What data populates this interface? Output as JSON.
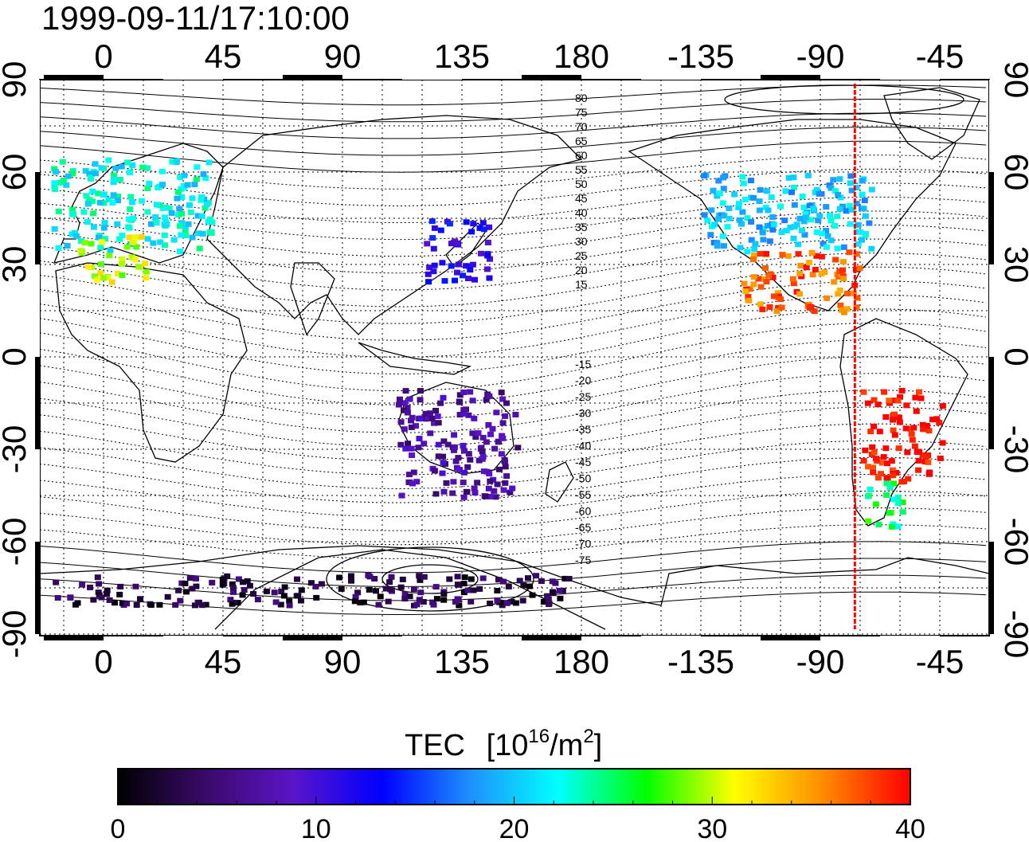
{
  "title": "1999-09-11/17:10:00",
  "map": {
    "lon_ticks_top": [
      "0",
      "45",
      "90",
      "135",
      "180",
      "-135",
      "-90",
      "-45"
    ],
    "lon_ticks_bottom": [
      "0",
      "45",
      "90",
      "135",
      "180",
      "-135",
      "-90",
      "-45"
    ],
    "lat_ticks_left": [
      "90",
      "60",
      "30",
      "0",
      "-30",
      "-60",
      "-90"
    ],
    "lat_ticks_right": [
      "90",
      "60",
      "30",
      "0",
      "-30",
      "-60",
      "-90"
    ],
    "magnetic_latitude_labels": [
      "80",
      "75",
      "70",
      "65",
      "60",
      "55",
      "50",
      "45",
      "40",
      "35",
      "30",
      "25",
      "20",
      "15",
      "-15",
      "-20",
      "-25",
      "-30",
      "-35",
      "-40",
      "-45",
      "-50",
      "-55",
      "-60",
      "-65",
      "-70",
      "-75"
    ],
    "terminator_longitude": -77,
    "terminator_color": "#ff0000"
  },
  "colorbar": {
    "title": "TEC",
    "unit_base": "[10",
    "unit_exp": "16",
    "unit_mid": "/m",
    "unit_exp2": "2",
    "unit_close": "]",
    "ticks": [
      "0",
      "10",
      "20",
      "30",
      "40"
    ],
    "min": 0,
    "max": 40,
    "colors": [
      "#000000",
      "#3a0a6a",
      "#5a14c8",
      "#0000ff",
      "#1e90ff",
      "#00ffff",
      "#00ff00",
      "#ffff00",
      "#ff8c00",
      "#ff0000"
    ]
  },
  "chart_data": {
    "type": "heatmap",
    "variable": "TEC",
    "value_range": [
      0,
      40
    ],
    "regions": [
      {
        "lon_range": [
          -20,
          40
        ],
        "lat_range": [
          35,
          65
        ],
        "tec": 22
      },
      {
        "lon_range": [
          -10,
          15
        ],
        "lat_range": [
          25,
          40
        ],
        "tec": 30
      },
      {
        "lon_range": [
          -135,
          -70
        ],
        "lat_range": [
          35,
          60
        ],
        "tec": 20
      },
      {
        "lon_range": [
          -120,
          -75
        ],
        "lat_range": [
          15,
          35
        ],
        "tec": 37
      },
      {
        "lon_range": [
          -75,
          -45
        ],
        "lat_range": [
          -40,
          -10
        ],
        "tec": 40
      },
      {
        "lon_range": [
          -75,
          -60
        ],
        "lat_range": [
          -55,
          -40
        ],
        "tec": 25
      },
      {
        "lon_range": [
          120,
          145
        ],
        "lat_range": [
          25,
          45
        ],
        "tec": 12
      },
      {
        "lon_range": [
          110,
          155
        ],
        "lat_range": [
          -45,
          -10
        ],
        "tec": 7
      },
      {
        "lon_range": [
          -20,
          175
        ],
        "lat_range": [
          -80,
          -70
        ],
        "tec": 3
      }
    ]
  }
}
